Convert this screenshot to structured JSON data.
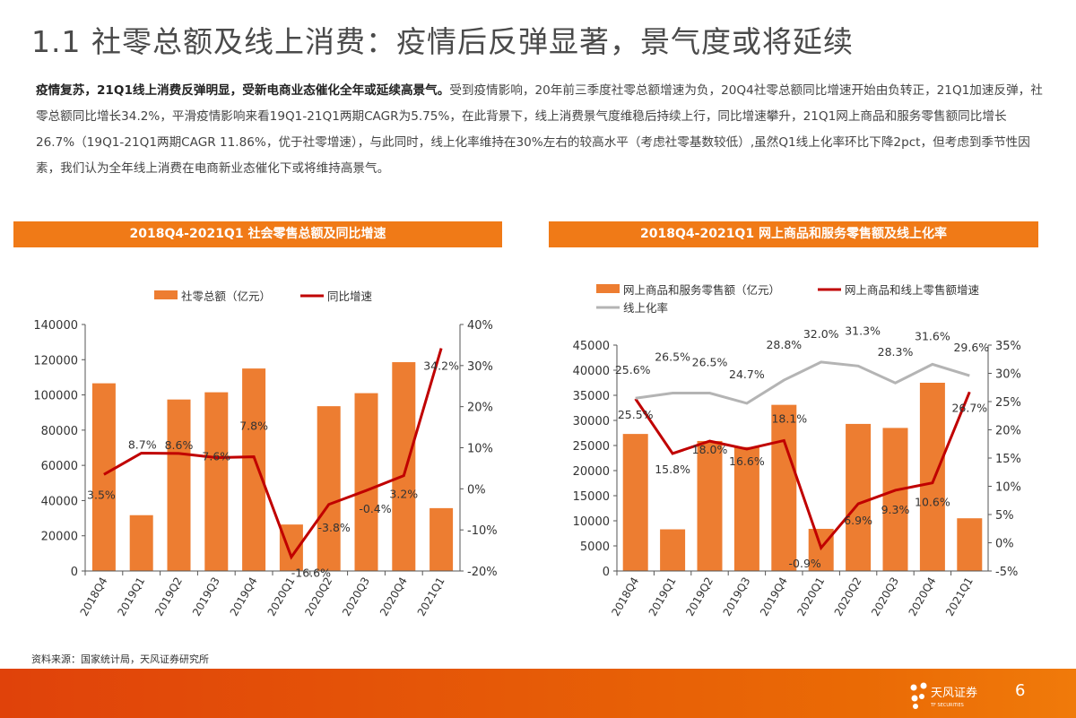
{
  "title": "1.1 社零总额及线上消费：疫情后反弹显著，景气度或将延续",
  "paragraph": {
    "bold": "疫情复苏，21Q1线上消费反弹明显，受新电商业态催化全年或延续高景气。",
    "text": "受到疫情影响，20年前三季度社零总额增速为负，20Q4社零总额同比增速开始由负转正，21Q1加速反弹，社零总额同比增长34.2%，平滑疫情影响来看19Q1-21Q1两期CAGR为5.75%，在此背景下，线上消费景气度维稳后持续上行，同比增速攀升，21Q1网上商品和服务零售额同比增长26.7%（19Q1-21Q1两期CAGR 11.86%，优于社零增速），与此同时，线上化率维持在30%左右的较高水平（考虑社零基数较低）,虽然Q1线上化率环比下降2pct，但考虑到季节性因素，我们认为全年线上消费在电商新业态催化下或将维持高景气。"
  },
  "source": "资料来源：国家统计局，天风证券研究所",
  "footer": {
    "logo_text": "天风证券",
    "logo_sub": "TF SECURITIES",
    "page": "6",
    "color": "#e65a08"
  },
  "colors": {
    "bar": "#ed7d31",
    "red_line": "#c00000",
    "gray_line": "#b4b4b4",
    "header": "#f07a17"
  },
  "chart_data": [
    {
      "type": "bar+line",
      "title": "2018Q4-2021Q1 社会零售总额及同比增速",
      "categories": [
        "2018Q4",
        "2019Q1",
        "2019Q2",
        "2019Q3",
        "2019Q4",
        "2020Q1",
        "2020Q2",
        "2020Q3",
        "2020Q4",
        "2021Q1"
      ],
      "left_axis": {
        "ylim": [
          0,
          140000
        ],
        "ticks": [
          "0",
          "20000",
          "40000",
          "60000",
          "80000",
          "100000",
          "120000",
          "140000"
        ]
      },
      "right_axis": {
        "ylim": [
          -20,
          40
        ],
        "ticks": [
          "-20%",
          "-10%",
          "0%",
          "10%",
          "20%",
          "30%",
          "40%"
        ]
      },
      "series": [
        {
          "name": "社零总额（亿元）",
          "type": "bar",
          "axis": "left",
          "values": [
            106600,
            31700,
            97400,
            101500,
            115000,
            26400,
            93600,
            101000,
            118600,
            35700
          ]
        },
        {
          "name": "同比增速",
          "type": "line",
          "axis": "right",
          "values": [
            3.5,
            8.7,
            8.6,
            7.6,
            7.8,
            -16.6,
            -3.8,
            -0.4,
            3.2,
            34.2
          ],
          "labels": [
            "3.5%",
            "8.7%",
            "8.6%",
            "7.6%",
            "7.8%",
            "-16.6%",
            "-3.8%",
            "-0.4%",
            "3.2%",
            "34.2%"
          ]
        }
      ],
      "legend": "top"
    },
    {
      "type": "bar+line",
      "title": "2018Q4-2021Q1 网上商品和服务零售额及线上化率",
      "categories": [
        "2018Q4",
        "2019Q1",
        "2019Q2",
        "2019Q3",
        "2019Q4",
        "2020Q1",
        "2020Q2",
        "2020Q3",
        "2020Q4",
        "2021Q1"
      ],
      "left_axis": {
        "ylim": [
          0,
          45000
        ],
        "ticks": [
          "0",
          "5000",
          "10000",
          "15000",
          "20000",
          "25000",
          "30000",
          "35000",
          "40000",
          "45000"
        ]
      },
      "right_axis": {
        "ylim": [
          -5,
          35
        ],
        "ticks": [
          "-5%",
          "0%",
          "5%",
          "10%",
          "15%",
          "20%",
          "25%",
          "30%",
          "35%"
        ]
      },
      "series": [
        {
          "name": "网上商品和服务零售额（亿元）",
          "type": "bar",
          "axis": "left",
          "values": [
            27300,
            8300,
            25900,
            24700,
            33100,
            8400,
            29300,
            28500,
            37500,
            10500
          ]
        },
        {
          "name": "网上商品和线上零售额增速",
          "type": "line",
          "axis": "right",
          "values": [
            25.5,
            15.8,
            18.0,
            16.6,
            18.1,
            -0.9,
            6.9,
            9.3,
            10.6,
            26.7
          ],
          "labels": [
            "25.5%",
            "15.8%",
            "18.0%",
            "16.6%",
            "18.1%",
            "-0.9%",
            "6.9%",
            "9.3%",
            "10.6%",
            "26.7%"
          ]
        },
        {
          "name": "线上化率",
          "type": "line",
          "axis": "right",
          "values": [
            25.6,
            26.5,
            26.5,
            24.7,
            28.8,
            32.0,
            31.3,
            28.3,
            31.6,
            29.6
          ],
          "labels": [
            "25.6%",
            "26.5%",
            "26.5%",
            "24.7%",
            "28.8%",
            "32.0%",
            "31.3%",
            "28.3%",
            "31.6%",
            "29.6%"
          ]
        }
      ],
      "legend": "top"
    }
  ]
}
